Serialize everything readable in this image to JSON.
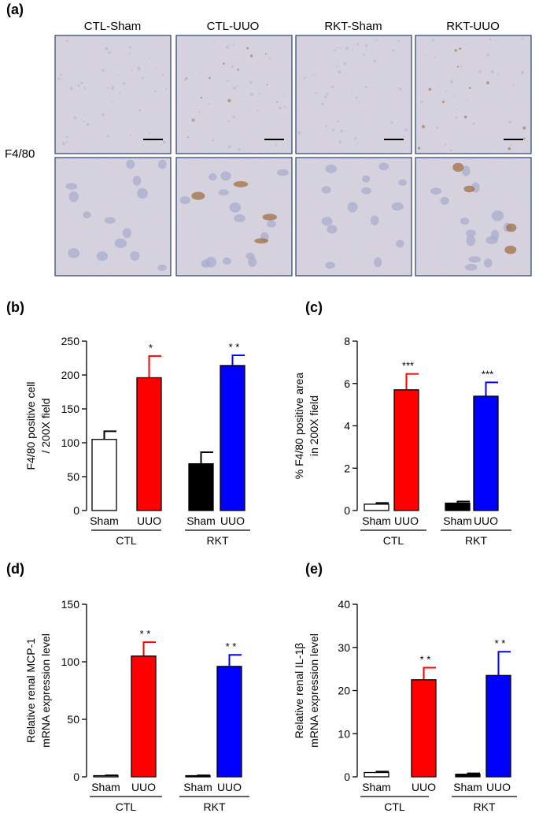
{
  "panel_a": {
    "letter": "(a)",
    "row_label": "F4/80",
    "columns": [
      "CTL-Sham",
      "CTL-UUO",
      "RKT-Sham",
      "RKT-UUO"
    ]
  },
  "colors": {
    "sham_ctl": "#ffffff",
    "uuo_ctl": "#ff0000",
    "sham_rkt": "#000000",
    "uuo_rkt": "#0000ff",
    "tissue": "#d9d6e2",
    "tissue_border": "#2c3f66",
    "nucleus": "#a9acce",
    "stain": "#9c6a3b"
  },
  "chart_data": [
    {
      "id": "b",
      "letter": "(b)",
      "type": "bar",
      "categories": [
        "Sham",
        "UUO",
        "Sham",
        "UUO"
      ],
      "groups": [
        "CTL",
        "RKT"
      ],
      "values": [
        105,
        196,
        69,
        214
      ],
      "errors": [
        12,
        32,
        17,
        15
      ],
      "significance": [
        "",
        "*",
        "",
        "* *"
      ],
      "ylabel_lines": [
        "F4/80 positive cell",
        "/ 200X field"
      ],
      "ylim": [
        0,
        250
      ],
      "yticks": [
        0,
        50,
        100,
        150,
        200,
        250
      ]
    },
    {
      "id": "c",
      "letter": "(c)",
      "type": "bar",
      "categories": [
        "Sham",
        "UUO",
        "Sham",
        "UUO"
      ],
      "groups": [
        "CTL",
        "RKT"
      ],
      "values": [
        0.3,
        5.7,
        0.35,
        5.4
      ],
      "errors": [
        0.06,
        0.75,
        0.08,
        0.65
      ],
      "significance": [
        "",
        "***",
        "",
        "***"
      ],
      "ylabel_lines": [
        "% F4/80 positive area",
        "in 200X field"
      ],
      "ylim": [
        0,
        8
      ],
      "yticks": [
        0,
        2,
        4,
        6,
        8
      ]
    },
    {
      "id": "d",
      "letter": "(d)",
      "type": "bar",
      "categories": [
        "Sham",
        "UUO",
        "Sham",
        "UUO"
      ],
      "groups": [
        "CTL",
        "RKT"
      ],
      "values": [
        1,
        105,
        1,
        96
      ],
      "errors": [
        0.3,
        12,
        0.3,
        10
      ],
      "significance": [
        "",
        "* *",
        "",
        "* *"
      ],
      "ylabel_lines": [
        "Relative renal MCP-1",
        "mRNA expression level"
      ],
      "ylim": [
        0,
        150
      ],
      "yticks": [
        0,
        50,
        100,
        150
      ]
    },
    {
      "id": "e",
      "letter": "(e)",
      "type": "bar",
      "categories": [
        "Sham",
        "UUO",
        "Sham",
        "UUO"
      ],
      "groups": [
        "CTL",
        "RKT"
      ],
      "values": [
        1,
        22.5,
        0.6,
        23.5
      ],
      "errors": [
        0.2,
        2.8,
        0.2,
        5.5
      ],
      "significance": [
        "",
        "* *",
        "",
        "* *"
      ],
      "ylabel_lines": [
        "Relative renal IL-1β",
        "mRNA expression level"
      ],
      "ylim": [
        0,
        40
      ],
      "yticks": [
        0,
        10,
        20,
        30,
        40
      ]
    }
  ]
}
